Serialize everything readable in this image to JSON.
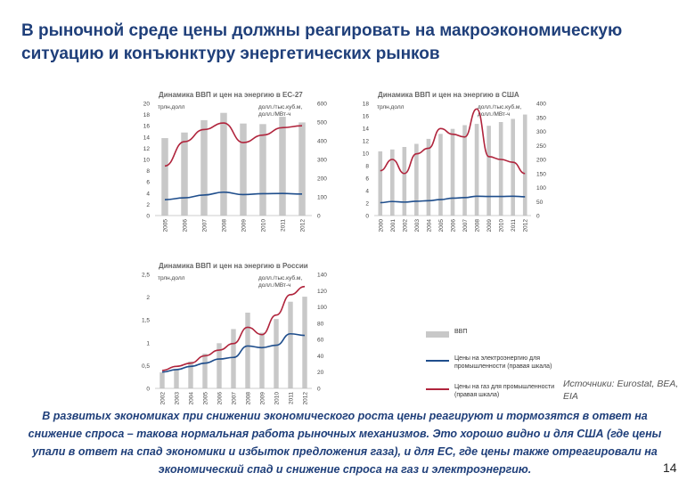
{
  "slide": {
    "title": "В рыночной среде цены должны реагировать на макроэкономическую ситуацию и конъюнктуру энергетических рынков",
    "source": "Источники: Eurostat, BEA, EIA",
    "bottom_text": "В развитых экономиках при снижении экономического роста цены реагируют и тормозятся в ответ на снижение спроса – такова нормальная работа рыночных механизмов. Это хорошо видно и для США (где цены упали в ответ на спад экономики и избыток предложения газа), и для ЕС, где цены также отреагировали на экономический спад и снижение спроса на газ и электроэнергию.",
    "page_number": "14"
  },
  "legend": [
    {
      "label": "ВВП",
      "kind": "bar",
      "color": "#c8c8c8"
    },
    {
      "label": "Цены на электроэнергию для промышленности (правая шкала)",
      "kind": "line",
      "color": "#1f4e8c"
    },
    {
      "label": "Цены на газ для промышленности (правая шкала)",
      "kind": "line",
      "color": "#b0243c"
    }
  ],
  "colors": {
    "gdp": "#c8c8c8",
    "electricity": "#1f4e8c",
    "gas": "#b0243c",
    "title": "#1f3f7a"
  },
  "chart_data": [
    {
      "type": "bar",
      "title": "Динамика ВВП и цен на энергию в ЕС-27",
      "left_unit": "трлн.долл",
      "right_unit": "долл./тыс.куб.м, долл./МВт-ч",
      "categories": [
        "2005",
        "2006",
        "2007",
        "2008",
        "2009",
        "2010",
        "2011",
        "2012"
      ],
      "series": [
        {
          "name": "ВВП",
          "axis": "left",
          "values": [
            13.8,
            14.8,
            17.0,
            18.3,
            16.4,
            16.3,
            17.6,
            16.6
          ]
        },
        {
          "name": "Цены на электроэнергию для промышленности",
          "axis": "right",
          "values": [
            85,
            95,
            110,
            125,
            112,
            117,
            118,
            115
          ]
        },
        {
          "name": "Цены на газ для промышленности",
          "axis": "right",
          "values": [
            265,
            395,
            460,
            495,
            390,
            430,
            470,
            480
          ]
        }
      ],
      "ylim_left": [
        0,
        20
      ],
      "yticks_left": [
        0,
        2,
        4,
        6,
        8,
        10,
        12,
        14,
        16,
        18,
        20
      ],
      "ylim_right": [
        0,
        600
      ],
      "yticks_right": [
        0,
        100,
        200,
        300,
        400,
        500,
        600
      ]
    },
    {
      "type": "bar",
      "title": "Динамика ВВП и цен на энергию в США",
      "left_unit": "трлн.долл",
      "right_unit": "долл./тыс.куб.м, долл./МВт-ч",
      "categories": [
        "2000",
        "2001",
        "2002",
        "2003",
        "2004",
        "2005",
        "2006",
        "2007",
        "2008",
        "2009",
        "2010",
        "2011",
        "2012"
      ],
      "series": [
        {
          "name": "ВВП",
          "axis": "left",
          "values": [
            10.3,
            10.6,
            11.0,
            11.5,
            12.3,
            13.1,
            13.9,
            14.5,
            14.7,
            14.4,
            15.0,
            15.5,
            16.2
          ]
        },
        {
          "name": "Цены на электроэнергию для промышленности",
          "axis": "right",
          "values": [
            46,
            50,
            48,
            51,
            53,
            57,
            62,
            64,
            69,
            68,
            68,
            69,
            67
          ]
        },
        {
          "name": "Цены на газ для промышленности",
          "axis": "right",
          "values": [
            160,
            200,
            150,
            220,
            240,
            310,
            290,
            280,
            380,
            210,
            200,
            190,
            150
          ]
        }
      ],
      "ylim_left": [
        0,
        18
      ],
      "yticks_left": [
        0,
        2,
        4,
        6,
        8,
        10,
        12,
        14,
        16,
        18
      ],
      "ylim_right": [
        0,
        400
      ],
      "yticks_right": [
        0,
        50,
        100,
        150,
        200,
        250,
        300,
        350,
        400
      ]
    },
    {
      "type": "bar",
      "title": "Динамика ВВП и цен на энергию в России",
      "left_unit": "трлн.долл",
      "right_unit": "долл./тыс.куб.м, долл./МВт-ч",
      "categories": [
        "2002",
        "2003",
        "2004",
        "2005",
        "2006",
        "2007",
        "2008",
        "2009",
        "2010",
        "2011",
        "2012"
      ],
      "series": [
        {
          "name": "ВВП",
          "axis": "left",
          "values": [
            0.35,
            0.43,
            0.59,
            0.76,
            0.99,
            1.3,
            1.66,
            1.22,
            1.52,
            1.9,
            2.01
          ]
        },
        {
          "name": "Цены на электроэнергию для промышленности",
          "axis": "right",
          "values": [
            20,
            23,
            27,
            31,
            36,
            38,
            52,
            50,
            53,
            67,
            65
          ]
        },
        {
          "name": "Цены на газ для промышленности",
          "axis": "right",
          "values": [
            22,
            27,
            31,
            40,
            47,
            55,
            75,
            66,
            90,
            115,
            125
          ]
        }
      ],
      "ylim_left": [
        0,
        2.5
      ],
      "yticks_left": [
        "0",
        "0,5",
        "1",
        "1,5",
        "2",
        "2,5"
      ],
      "ylim_right": [
        0,
        140
      ],
      "yticks_right": [
        0,
        20,
        40,
        60,
        80,
        100,
        120,
        140
      ]
    }
  ]
}
